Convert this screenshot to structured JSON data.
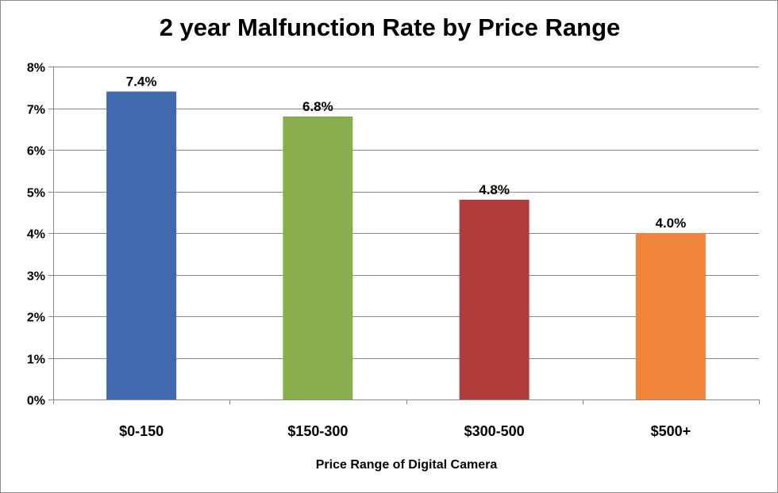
{
  "chart_data": {
    "type": "bar",
    "title": "2 year Malfunction Rate by Price Range",
    "xlabel": "Price Range of Digital Camera",
    "ylabel": "",
    "categories": [
      "$0-150",
      "$150-300",
      "$300-500",
      "$500+"
    ],
    "values": [
      7.4,
      6.8,
      4.8,
      4.0
    ],
    "data_labels": [
      "7.4%",
      "6.8%",
      "4.8%",
      "4.0%"
    ],
    "colors": [
      "#4169AE",
      "#88AD4C",
      "#B03D3C",
      "#F0843A"
    ],
    "ylim": [
      0,
      8
    ],
    "yticks": [
      0,
      1,
      2,
      3,
      4,
      5,
      6,
      7,
      8
    ],
    "ytick_labels": [
      "0%",
      "1%",
      "2%",
      "3%",
      "4%",
      "5%",
      "6%",
      "7%",
      "8%"
    ],
    "grid": true,
    "legend": "none"
  }
}
